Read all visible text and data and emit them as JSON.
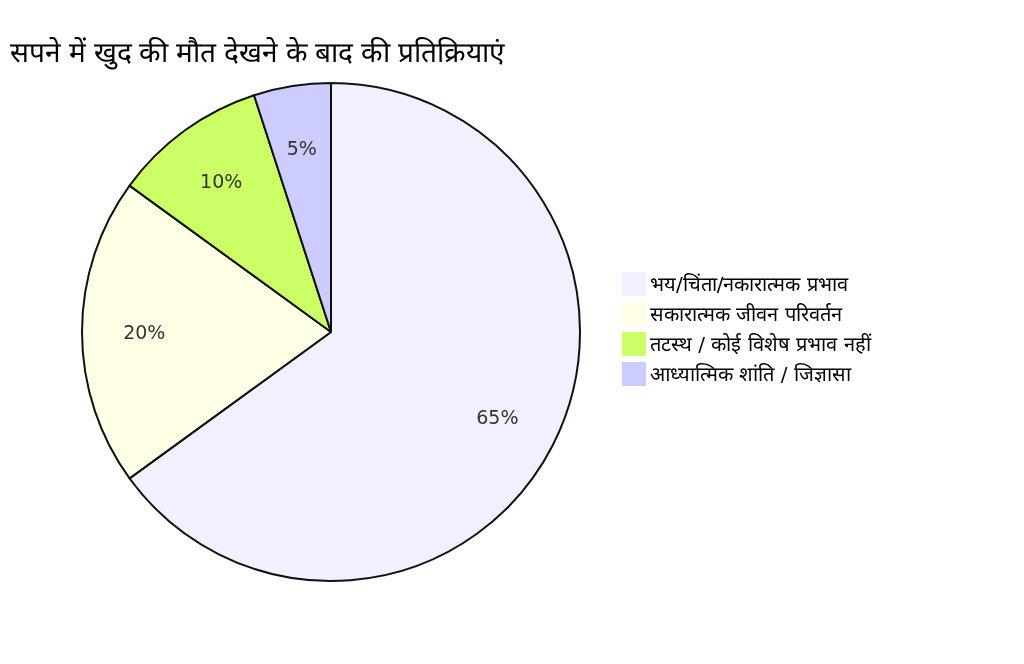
{
  "chart_data": {
    "type": "pie",
    "title": "सपने में खुद की मौत देखने के बाद की प्रतिक्रियाएं",
    "categories": [
      "भय/चिंता/नकारात्मक प्रभाव",
      "सकारात्मक जीवन परिवर्तन",
      "तटस्थ / कोई विशेष प्रभाव नहीं",
      "आध्यात्मिक शांति / जिज्ञासा"
    ],
    "values": [
      65,
      20,
      10,
      5
    ],
    "colors": [
      "#f0f0ff",
      "#ffffe6",
      "#ccff66",
      "#ccccff"
    ],
    "value_labels": [
      "65%",
      "20%",
      "10%",
      "5%"
    ],
    "legend": "right"
  }
}
